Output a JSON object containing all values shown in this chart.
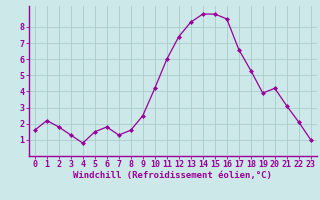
{
  "x": [
    0,
    1,
    2,
    3,
    4,
    5,
    6,
    7,
    8,
    9,
    10,
    11,
    12,
    13,
    14,
    15,
    16,
    17,
    18,
    19,
    20,
    21,
    22,
    23
  ],
  "y": [
    1.6,
    2.2,
    1.8,
    1.3,
    0.8,
    1.5,
    1.8,
    1.3,
    1.6,
    2.5,
    4.2,
    6.0,
    7.4,
    8.3,
    8.8,
    8.8,
    8.5,
    6.6,
    5.3,
    3.9,
    4.2,
    3.1,
    2.1,
    1.0
  ],
  "line_color": "#990099",
  "marker": "D",
  "marker_size": 2.0,
  "bg_color": "#cce8e8",
  "grid_color": "#aacccc",
  "xlabel": "Windchill (Refroidissement éolien,°C)",
  "tick_color": "#990099",
  "xlim": [
    -0.5,
    23.5
  ],
  "ylim": [
    0,
    9.3
  ],
  "yticks": [
    1,
    2,
    3,
    4,
    5,
    6,
    7,
    8
  ],
  "label_fontsize": 6.5,
  "tick_fontsize": 6.0
}
